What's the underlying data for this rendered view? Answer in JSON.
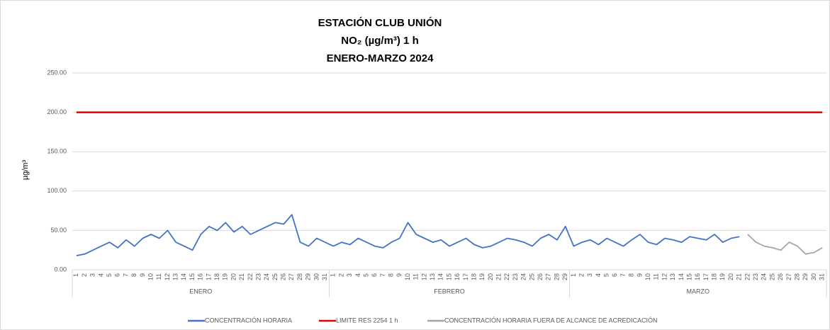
{
  "chart_data": {
    "type": "line",
    "title": [
      "ESTACIÓN CLUB UNIÓN",
      "NO₂ (µg/m³) 1 h",
      "ENERO-MARZO 2024"
    ],
    "ylabel": "µg/m³",
    "months": [
      "ENERO",
      "FEBRERO",
      "MARZO"
    ],
    "categories": [
      "1",
      "2",
      "3",
      "4",
      "5",
      "6",
      "7",
      "8",
      "9",
      "10",
      "11",
      "12",
      "13",
      "14",
      "15",
      "16",
      "17",
      "18",
      "19",
      "20",
      "21",
      "22",
      "23",
      "24",
      "25",
      "26",
      "27",
      "28",
      "29",
      "30",
      "31",
      "1",
      "2",
      "3",
      "4",
      "5",
      "6",
      "7",
      "8",
      "9",
      "10",
      "11",
      "12",
      "13",
      "14",
      "15",
      "16",
      "17",
      "18",
      "19",
      "20",
      "21",
      "22",
      "23",
      "24",
      "25",
      "26",
      "27",
      "28",
      "29",
      "1",
      "2",
      "3",
      "4",
      "5",
      "6",
      "7",
      "8",
      "9",
      "10",
      "11",
      "12",
      "13",
      "14",
      "15",
      "16",
      "17",
      "18",
      "19",
      "20",
      "21",
      "22",
      "23",
      "24",
      "25",
      "26",
      "27",
      "28",
      "29",
      "30",
      "31"
    ],
    "ylim": [
      0,
      250
    ],
    "yticks": [
      {
        "value": 0,
        "label": "0.00"
      },
      {
        "value": 50,
        "label": "50.00"
      },
      {
        "value": 100,
        "label": "100.00"
      },
      {
        "value": 150,
        "label": "150.00"
      },
      {
        "value": 200,
        "label": "200.00"
      },
      {
        "value": 250,
        "label": "250.00"
      }
    ],
    "series": [
      {
        "name": "CONCENTRACIÓN HORARIA",
        "color": "#4472c4",
        "values": [
          18,
          20,
          25,
          30,
          35,
          28,
          38,
          30,
          40,
          45,
          40,
          50,
          35,
          30,
          25,
          45,
          55,
          50,
          60,
          48,
          55,
          45,
          50,
          55,
          60,
          58,
          70,
          35,
          30,
          40,
          35,
          30,
          35,
          32,
          40,
          35,
          30,
          28,
          35,
          40,
          60,
          45,
          40,
          35,
          38,
          30,
          35,
          40,
          32,
          28,
          30,
          35,
          40,
          38,
          35,
          30,
          40,
          45,
          38,
          55,
          30,
          35,
          38,
          32,
          40,
          35,
          30,
          38,
          45,
          35,
          32,
          40,
          38,
          35,
          42,
          40,
          38,
          45,
          35,
          40,
          42,
          null,
          null,
          null,
          null,
          null,
          null,
          null,
          null,
          null,
          null
        ]
      },
      {
        "name": "LIMITE RES 2254 1 h",
        "color": "#e00000",
        "values": [
          200,
          200,
          200,
          200,
          200,
          200,
          200,
          200,
          200,
          200,
          200,
          200,
          200,
          200,
          200,
          200,
          200,
          200,
          200,
          200,
          200,
          200,
          200,
          200,
          200,
          200,
          200,
          200,
          200,
          200,
          200,
          200,
          200,
          200,
          200,
          200,
          200,
          200,
          200,
          200,
          200,
          200,
          200,
          200,
          200,
          200,
          200,
          200,
          200,
          200,
          200,
          200,
          200,
          200,
          200,
          200,
          200,
          200,
          200,
          200,
          200,
          200,
          200,
          200,
          200,
          200,
          200,
          200,
          200,
          200,
          200,
          200,
          200,
          200,
          200,
          200,
          200,
          200,
          200,
          200,
          200,
          200,
          200,
          200,
          200,
          200,
          200,
          200,
          200,
          200,
          200
        ]
      },
      {
        "name": "CONCENTRACIÓN HORARIA FUERA DE ALCANCE DE ACREDICACIÓN",
        "color": "#a5a5a5",
        "values": [
          null,
          null,
          null,
          null,
          null,
          null,
          null,
          null,
          null,
          null,
          null,
          null,
          null,
          null,
          null,
          null,
          null,
          null,
          null,
          null,
          null,
          null,
          null,
          null,
          null,
          null,
          null,
          null,
          null,
          null,
          null,
          null,
          null,
          null,
          null,
          null,
          null,
          null,
          null,
          null,
          null,
          null,
          null,
          null,
          null,
          null,
          null,
          null,
          null,
          null,
          null,
          null,
          null,
          null,
          null,
          null,
          null,
          null,
          null,
          null,
          null,
          null,
          null,
          null,
          null,
          null,
          null,
          null,
          null,
          null,
          null,
          null,
          null,
          null,
          null,
          null,
          null,
          null,
          null,
          null,
          null,
          45,
          35,
          30,
          28,
          25,
          35,
          30,
          20,
          22,
          28
        ]
      }
    ],
    "grid": true
  }
}
